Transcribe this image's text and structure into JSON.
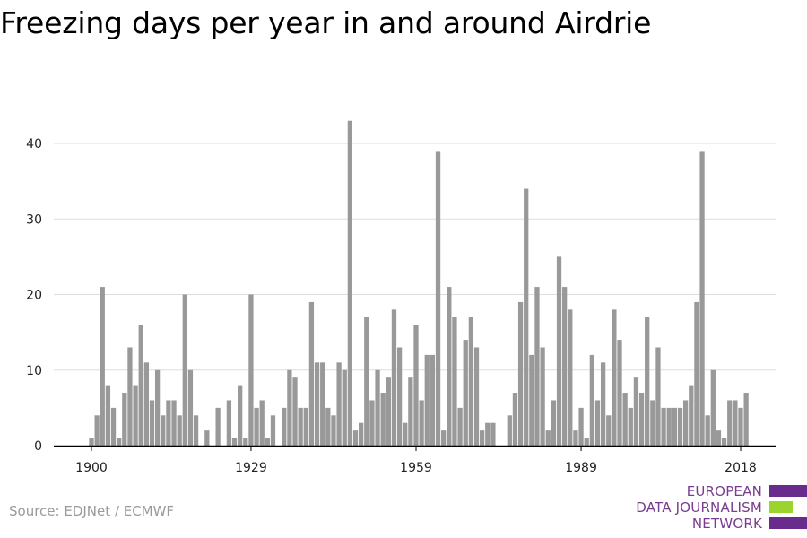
{
  "title": "Freezing days per year in and around Airdrie",
  "source": "Source: EDJNet / ECMWF",
  "logo": {
    "line1": "EUROPEAN",
    "line2": "DATA JOURNALISM",
    "line3": "NETWORK",
    "colors": {
      "purple": "#6a2c8c",
      "green": "#9bd32f"
    }
  },
  "chart_data": {
    "type": "bar",
    "title": "Freezing days per year in and around Airdrie",
    "xlabel": "",
    "ylabel": "",
    "x_start": 1900,
    "x_end": 2018,
    "xticks": [
      1900,
      1929,
      1959,
      1989,
      2018
    ],
    "yticks": [
      0,
      10,
      20,
      30,
      40
    ],
    "ylim": [
      0,
      45
    ],
    "grid": true,
    "bar_color": "#999999",
    "values": [
      1,
      4,
      21,
      8,
      5,
      1,
      7,
      13,
      8,
      16,
      11,
      6,
      10,
      4,
      6,
      6,
      4,
      20,
      10,
      4,
      0,
      2,
      0,
      5,
      0,
      6,
      1,
      8,
      1,
      20,
      5,
      6,
      1,
      4,
      0,
      5,
      10,
      9,
      5,
      5,
      19,
      11,
      11,
      5,
      4,
      11,
      10,
      43,
      2,
      3,
      17,
      6,
      10,
      7,
      9,
      18,
      13,
      3,
      9,
      16,
      6,
      12,
      12,
      39,
      2,
      21,
      17,
      5,
      14,
      17,
      13,
      2,
      3,
      3,
      0,
      0,
      4,
      7,
      19,
      34,
      12,
      21,
      13,
      2,
      6,
      25,
      21,
      18,
      2,
      5,
      1,
      12,
      6,
      11,
      4,
      18,
      14,
      7,
      5,
      9,
      7,
      17,
      6,
      13,
      5,
      5,
      5,
      5,
      6,
      8,
      19,
      39,
      4,
      10,
      2,
      1,
      6,
      6,
      5,
      7
    ]
  }
}
